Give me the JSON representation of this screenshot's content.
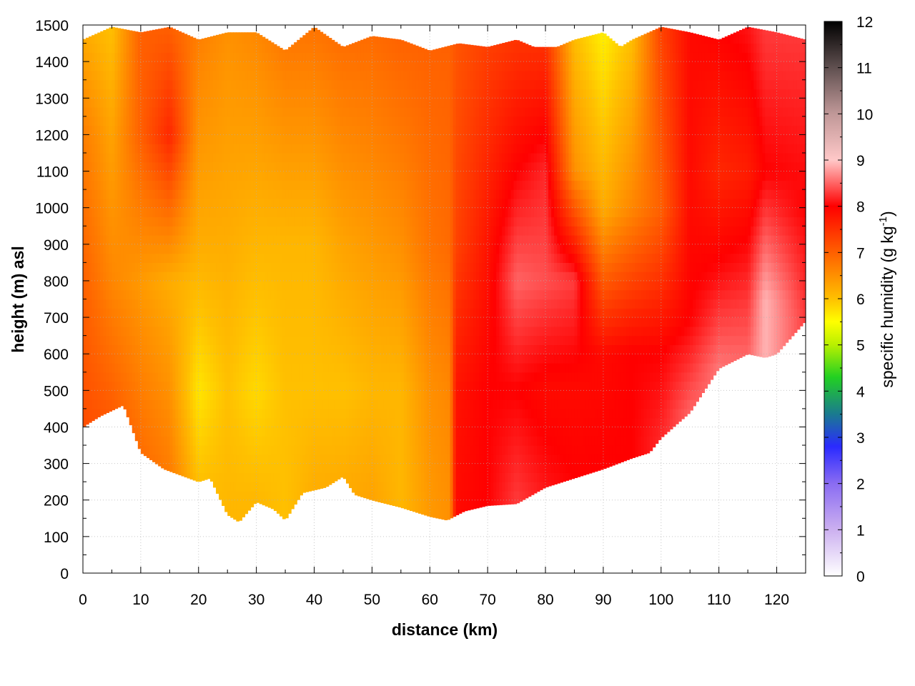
{
  "chart_data": {
    "type": "heatmap",
    "title": "",
    "xlabel": "distance (km)",
    "ylabel": "height (m) asl",
    "xlim": [
      0,
      125
    ],
    "ylim": [
      0,
      1500
    ],
    "x_ticks": [
      0,
      10,
      20,
      30,
      40,
      50,
      60,
      70,
      80,
      90,
      100,
      110,
      120
    ],
    "y_ticks": [
      0,
      100,
      200,
      300,
      400,
      500,
      600,
      700,
      800,
      900,
      1000,
      1100,
      1200,
      1300,
      1400,
      1500
    ],
    "grid": true,
    "colorbar": {
      "label_main": "specific humidity (g kg",
      "label_sup": "-1",
      "label_end": ")",
      "range": [
        0,
        12
      ],
      "ticks": [
        0,
        1,
        2,
        3,
        4,
        5,
        6,
        7,
        8,
        9,
        10,
        11,
        12
      ],
      "colormap": [
        {
          "v": 0,
          "color": "#ffffff"
        },
        {
          "v": 1,
          "color": "#ccb0f0"
        },
        {
          "v": 2,
          "color": "#8a6cf2"
        },
        {
          "v": 2.8,
          "color": "#2a2aff"
        },
        {
          "v": 3.5,
          "color": "#1a7a90"
        },
        {
          "v": 4.3,
          "color": "#22d022"
        },
        {
          "v": 5,
          "color": "#b8f000"
        },
        {
          "v": 5.5,
          "color": "#ffff00"
        },
        {
          "v": 6,
          "color": "#ffc000"
        },
        {
          "v": 7,
          "color": "#ff6000"
        },
        {
          "v": 8,
          "color": "#ff0000"
        },
        {
          "v": 9,
          "color": "#ffc8c8"
        },
        {
          "v": 10,
          "color": "#c09898"
        },
        {
          "v": 11,
          "color": "#605050"
        },
        {
          "v": 12,
          "color": "#000000"
        }
      ]
    },
    "bottom_boundary_m": [
      [
        0,
        400
      ],
      [
        3,
        430
      ],
      [
        7,
        460
      ],
      [
        10,
        330
      ],
      [
        14,
        285
      ],
      [
        20,
        250
      ],
      [
        22,
        260
      ],
      [
        25,
        160
      ],
      [
        27,
        140
      ],
      [
        30,
        195
      ],
      [
        33,
        175
      ],
      [
        35,
        145
      ],
      [
        38,
        220
      ],
      [
        42,
        235
      ],
      [
        45,
        265
      ],
      [
        47,
        215
      ],
      [
        50,
        200
      ],
      [
        55,
        180
      ],
      [
        60,
        155
      ],
      [
        63,
        145
      ],
      [
        66,
        170
      ],
      [
        70,
        185
      ],
      [
        75,
        190
      ],
      [
        80,
        235
      ],
      [
        85,
        260
      ],
      [
        90,
        285
      ],
      [
        95,
        315
      ],
      [
        98,
        330
      ],
      [
        100,
        370
      ],
      [
        105,
        440
      ],
      [
        110,
        560
      ],
      [
        115,
        600
      ],
      [
        118,
        590
      ],
      [
        120,
        600
      ],
      [
        125,
        690
      ]
    ],
    "top_boundary_m": [
      [
        0,
        1460
      ],
      [
        5,
        1495
      ],
      [
        10,
        1480
      ],
      [
        15,
        1495
      ],
      [
        20,
        1460
      ],
      [
        25,
        1480
      ],
      [
        30,
        1480
      ],
      [
        35,
        1430
      ],
      [
        40,
        1495
      ],
      [
        45,
        1440
      ],
      [
        50,
        1470
      ],
      [
        55,
        1460
      ],
      [
        60,
        1430
      ],
      [
        65,
        1450
      ],
      [
        70,
        1440
      ],
      [
        75,
        1460
      ],
      [
        78,
        1440
      ],
      [
        82,
        1440
      ],
      [
        85,
        1460
      ],
      [
        90,
        1480
      ],
      [
        93,
        1440
      ],
      [
        95,
        1460
      ],
      [
        100,
        1495
      ],
      [
        105,
        1480
      ],
      [
        110,
        1460
      ],
      [
        115,
        1495
      ],
      [
        120,
        1480
      ],
      [
        125,
        1460
      ]
    ],
    "columns": [
      {
        "x": 0,
        "values": [
          {
            "z": 400,
            "q": 7.2
          },
          {
            "z": 800,
            "q": 7.0
          },
          {
            "z": 1200,
            "q": 6.7
          },
          {
            "z": 1500,
            "q": 6.2
          }
        ]
      },
      {
        "x": 5,
        "values": [
          {
            "z": 400,
            "q": 7.1
          },
          {
            "z": 800,
            "q": 6.6
          },
          {
            "z": 1200,
            "q": 6.3
          },
          {
            "z": 1500,
            "q": 6.0
          }
        ]
      },
      {
        "x": 10,
        "values": [
          {
            "z": 300,
            "q": 6.9
          },
          {
            "z": 800,
            "q": 6.4
          },
          {
            "z": 1200,
            "q": 7.0
          },
          {
            "z": 1500,
            "q": 7.0
          }
        ]
      },
      {
        "x": 15,
        "values": [
          {
            "z": 280,
            "q": 6.7
          },
          {
            "z": 800,
            "q": 6.2
          },
          {
            "z": 1200,
            "q": 7.6
          },
          {
            "z": 1500,
            "q": 7.0
          }
        ]
      },
      {
        "x": 20,
        "values": [
          {
            "z": 250,
            "q": 6.0
          },
          {
            "z": 500,
            "q": 5.7
          },
          {
            "z": 900,
            "q": 6.2
          },
          {
            "z": 1500,
            "q": 6.7
          }
        ]
      },
      {
        "x": 25,
        "values": [
          {
            "z": 150,
            "q": 6.1
          },
          {
            "z": 500,
            "q": 6.0
          },
          {
            "z": 900,
            "q": 6.2
          },
          {
            "z": 1500,
            "q": 6.5
          }
        ]
      },
      {
        "x": 30,
        "values": [
          {
            "z": 190,
            "q": 6.1
          },
          {
            "z": 500,
            "q": 5.8
          },
          {
            "z": 900,
            "q": 6.1
          },
          {
            "z": 1500,
            "q": 6.6
          }
        ]
      },
      {
        "x": 35,
        "values": [
          {
            "z": 150,
            "q": 6.0
          },
          {
            "z": 500,
            "q": 6.0
          },
          {
            "z": 900,
            "q": 6.1
          },
          {
            "z": 1500,
            "q": 6.8
          }
        ]
      },
      {
        "x": 40,
        "values": [
          {
            "z": 225,
            "q": 6.2
          },
          {
            "z": 500,
            "q": 6.0
          },
          {
            "z": 900,
            "q": 6.1
          },
          {
            "z": 1500,
            "q": 6.8
          }
        ]
      },
      {
        "x": 45,
        "values": [
          {
            "z": 260,
            "q": 6.2
          },
          {
            "z": 500,
            "q": 6.0
          },
          {
            "z": 900,
            "q": 6.3
          },
          {
            "z": 1500,
            "q": 6.9
          }
        ]
      },
      {
        "x": 50,
        "values": [
          {
            "z": 200,
            "q": 6.3
          },
          {
            "z": 500,
            "q": 6.1
          },
          {
            "z": 900,
            "q": 6.4
          },
          {
            "z": 1500,
            "q": 6.9
          }
        ]
      },
      {
        "x": 55,
        "values": [
          {
            "z": 180,
            "q": 6.1
          },
          {
            "z": 500,
            "q": 6.1
          },
          {
            "z": 900,
            "q": 6.5
          },
          {
            "z": 1500,
            "q": 7.0
          }
        ]
      },
      {
        "x": 60,
        "values": [
          {
            "z": 155,
            "q": 6.4
          },
          {
            "z": 500,
            "q": 6.5
          },
          {
            "z": 900,
            "q": 6.8
          },
          {
            "z": 1500,
            "q": 7.0
          }
        ]
      },
      {
        "x": 63.5,
        "values": [
          {
            "z": 145,
            "q": 6.5
          },
          {
            "z": 500,
            "q": 6.6
          },
          {
            "z": 900,
            "q": 6.9
          },
          {
            "z": 1500,
            "q": 7.0
          }
        ]
      },
      {
        "x": 64.5,
        "values": [
          {
            "z": 170,
            "q": 7.9
          },
          {
            "z": 500,
            "q": 7.8
          },
          {
            "z": 900,
            "q": 7.3
          },
          {
            "z": 1500,
            "q": 7.1
          }
        ]
      },
      {
        "x": 70,
        "values": [
          {
            "z": 185,
            "q": 8.0
          },
          {
            "z": 500,
            "q": 8.0
          },
          {
            "z": 900,
            "q": 7.8
          },
          {
            "z": 1500,
            "q": 7.3
          }
        ]
      },
      {
        "x": 75,
        "values": [
          {
            "z": 190,
            "q": 8.3
          },
          {
            "z": 500,
            "q": 8.0
          },
          {
            "z": 800,
            "q": 8.5
          },
          {
            "z": 1100,
            "q": 8.0
          },
          {
            "z": 1500,
            "q": 7.4
          }
        ]
      },
      {
        "x": 80,
        "values": [
          {
            "z": 235,
            "q": 8.1
          },
          {
            "z": 500,
            "q": 7.9
          },
          {
            "z": 800,
            "q": 8.4
          },
          {
            "z": 1100,
            "q": 8.2
          },
          {
            "z": 1500,
            "q": 7.4
          }
        ]
      },
      {
        "x": 85,
        "values": [
          {
            "z": 260,
            "q": 8.0
          },
          {
            "z": 500,
            "q": 7.9
          },
          {
            "z": 800,
            "q": 8.3
          },
          {
            "z": 1100,
            "q": 6.5
          },
          {
            "z": 1500,
            "q": 6.0
          }
        ]
      },
      {
        "x": 90,
        "values": [
          {
            "z": 285,
            "q": 8.0
          },
          {
            "z": 600,
            "q": 7.9
          },
          {
            "z": 1000,
            "q": 6.2
          },
          {
            "z": 1500,
            "q": 5.6
          }
        ]
      },
      {
        "x": 95,
        "values": [
          {
            "z": 315,
            "q": 8.0
          },
          {
            "z": 600,
            "q": 8.0
          },
          {
            "z": 1000,
            "q": 6.6
          },
          {
            "z": 1500,
            "q": 6.0
          }
        ]
      },
      {
        "x": 100,
        "values": [
          {
            "z": 370,
            "q": 8.2
          },
          {
            "z": 600,
            "q": 8.0
          },
          {
            "z": 1000,
            "q": 7.0
          },
          {
            "z": 1500,
            "q": 7.3
          }
        ]
      },
      {
        "x": 105,
        "values": [
          {
            "z": 440,
            "q": 8.5
          },
          {
            "z": 700,
            "q": 8.0
          },
          {
            "z": 1000,
            "q": 7.9
          },
          {
            "z": 1500,
            "q": 7.9
          }
        ]
      },
      {
        "x": 110,
        "values": [
          {
            "z": 560,
            "q": 8.6
          },
          {
            "z": 800,
            "q": 8.1
          },
          {
            "z": 1100,
            "q": 7.6
          },
          {
            "z": 1500,
            "q": 8.0
          }
        ]
      },
      {
        "x": 115,
        "values": [
          {
            "z": 600,
            "q": 8.5
          },
          {
            "z": 800,
            "q": 8.2
          },
          {
            "z": 1100,
            "q": 7.7
          },
          {
            "z": 1500,
            "q": 8.1
          }
        ]
      },
      {
        "x": 118,
        "values": [
          {
            "z": 590,
            "q": 8.9
          },
          {
            "z": 750,
            "q": 8.9
          },
          {
            "z": 1100,
            "q": 8.0
          },
          {
            "z": 1500,
            "q": 8.3
          }
        ]
      },
      {
        "x": 125,
        "values": [
          {
            "z": 690,
            "q": 8.3
          },
          {
            "z": 1000,
            "q": 8.0
          },
          {
            "z": 1500,
            "q": 8.3
          }
        ]
      }
    ]
  }
}
